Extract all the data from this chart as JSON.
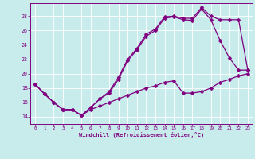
{
  "xlabel": "Windchill (Refroidissement éolien,°C)",
  "background_color": "#c8ecec",
  "line_color": "#800080",
  "grid_color": "#ffffff",
  "xlim": [
    -0.5,
    23.5
  ],
  "ylim": [
    13.0,
    29.8
  ],
  "xticks": [
    0,
    1,
    2,
    3,
    4,
    5,
    6,
    7,
    8,
    9,
    10,
    11,
    12,
    13,
    14,
    15,
    16,
    17,
    18,
    19,
    20,
    21,
    22,
    23
  ],
  "yticks": [
    14,
    16,
    18,
    20,
    22,
    24,
    26,
    28
  ],
  "line1_x": [
    0,
    1,
    2,
    3,
    4,
    5,
    6,
    7,
    8,
    9,
    10,
    11,
    12,
    13,
    14,
    15,
    16,
    17,
    18,
    19,
    20,
    21,
    22,
    23
  ],
  "line1_y": [
    18.5,
    17.2,
    16.0,
    15.0,
    15.0,
    14.2,
    15.3,
    16.5,
    17.3,
    19.2,
    21.8,
    23.3,
    25.2,
    26.0,
    27.7,
    27.9,
    27.5,
    27.4,
    29.0,
    27.5,
    24.6,
    22.2,
    20.5,
    20.5
  ],
  "line2_x": [
    0,
    1,
    2,
    3,
    4,
    5,
    6,
    7,
    8,
    9,
    10,
    11,
    12,
    13,
    14,
    15,
    16,
    17,
    18,
    19,
    20,
    21,
    22,
    23
  ],
  "line2_y": [
    18.5,
    17.2,
    16.0,
    15.0,
    15.0,
    14.2,
    15.3,
    16.5,
    17.5,
    19.5,
    22.0,
    23.5,
    25.5,
    26.2,
    27.9,
    28.0,
    27.7,
    27.7,
    29.2,
    28.0,
    27.5,
    27.5,
    27.5,
    20.5
  ],
  "line3_x": [
    0,
    1,
    2,
    3,
    4,
    5,
    6,
    7,
    8,
    9,
    10,
    11,
    12,
    13,
    14,
    15,
    16,
    17,
    18,
    19,
    20,
    21,
    22,
    23
  ],
  "line3_y": [
    18.5,
    17.2,
    16.0,
    15.0,
    15.0,
    14.2,
    15.0,
    15.5,
    16.0,
    16.5,
    17.0,
    17.5,
    18.0,
    18.3,
    18.8,
    19.0,
    17.3,
    17.3,
    17.5,
    18.0,
    18.8,
    19.2,
    19.7,
    20.0
  ]
}
